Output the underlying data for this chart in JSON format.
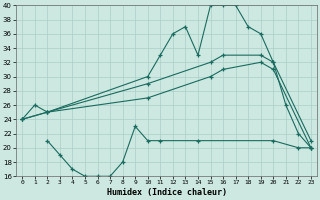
{
  "xlabel": "Humidex (Indice chaleur)",
  "bg_color": "#cce8e0",
  "grid_color": "#aacfc8",
  "line_color": "#1a6b60",
  "xlim": [
    -0.5,
    23.5
  ],
  "ylim": [
    16,
    40
  ],
  "xticks": [
    0,
    1,
    2,
    3,
    4,
    5,
    6,
    7,
    8,
    9,
    10,
    11,
    12,
    13,
    14,
    15,
    16,
    17,
    18,
    19,
    20,
    21,
    22,
    23
  ],
  "yticks": [
    16,
    18,
    20,
    22,
    24,
    26,
    28,
    30,
    32,
    34,
    36,
    38,
    40
  ],
  "line1_x": [
    0,
    1,
    2,
    10,
    11,
    12,
    13,
    14,
    15,
    16,
    17,
    18,
    19,
    20,
    21,
    22,
    23
  ],
  "line1_y": [
    24,
    26,
    25,
    30,
    33,
    36,
    37,
    33,
    40,
    40,
    40,
    37,
    36,
    32,
    26,
    22,
    20
  ],
  "line2_x": [
    0,
    2,
    10,
    15,
    16,
    19,
    20,
    23
  ],
  "line2_y": [
    24,
    25,
    29,
    32,
    33,
    33,
    32,
    21
  ],
  "line3_x": [
    0,
    2,
    10,
    15,
    16,
    19,
    20,
    23
  ],
  "line3_y": [
    24,
    25,
    27,
    30,
    31,
    32,
    31,
    20
  ],
  "line4_x": [
    2,
    3,
    4,
    5,
    6,
    7,
    8,
    9,
    10,
    11,
    14,
    20,
    22,
    23
  ],
  "line4_y": [
    21,
    19,
    17,
    16,
    16,
    16,
    18,
    23,
    21,
    21,
    21,
    21,
    20,
    20
  ]
}
